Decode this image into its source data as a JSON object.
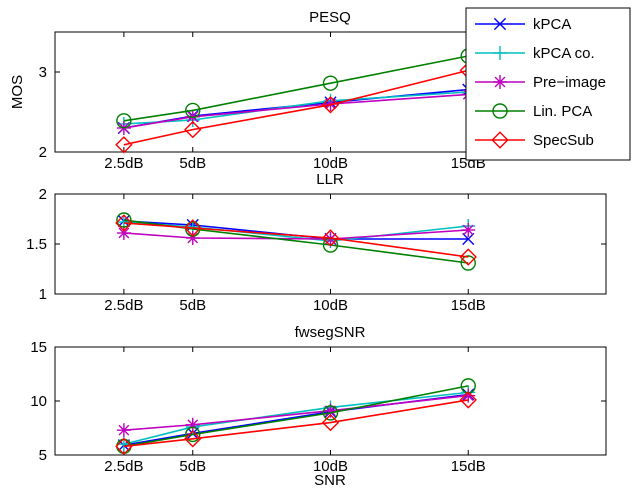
{
  "chart_data": [
    {
      "type": "line",
      "title": "PESQ",
      "xlabel": "",
      "ylabel": "MOS",
      "x": [
        2.5,
        5,
        10,
        15
      ],
      "xlim": [
        0,
        20
      ],
      "ylim": [
        2,
        3.5
      ],
      "xtick_labels": [
        "2.5dB",
        "5dB",
        "10dB",
        "15dB"
      ],
      "yticks": [
        2,
        3
      ],
      "ytick_labels": [
        "2",
        "3"
      ],
      "grid": false,
      "legend": "top-right",
      "series": [
        {
          "name": "kPCA",
          "color": "#0000ff",
          "marker": "x",
          "values": [
            2.3,
            2.45,
            2.62,
            2.78
          ]
        },
        {
          "name": "kPCA co.",
          "color": "#00bfbf",
          "marker": "plus",
          "values": [
            2.35,
            2.4,
            2.64,
            2.75
          ]
        },
        {
          "name": "Pre−image",
          "color": "#bf00bf",
          "marker": "asterisk",
          "values": [
            2.3,
            2.44,
            2.6,
            2.72
          ]
        },
        {
          "name": "Lin. PCA",
          "color": "#008000",
          "marker": "circle",
          "values": [
            2.39,
            2.52,
            2.86,
            3.2
          ]
        },
        {
          "name": "SpecSub",
          "color": "#ff0000",
          "marker": "diamond",
          "values": [
            2.09,
            2.28,
            2.59,
            3.02
          ]
        }
      ]
    },
    {
      "type": "line",
      "title": "LLR",
      "xlabel": "",
      "ylabel": "",
      "x": [
        2.5,
        5,
        10,
        15
      ],
      "xlim": [
        0,
        20
      ],
      "ylim": [
        1,
        2
      ],
      "xtick_labels": [
        "2.5dB",
        "5dB",
        "10dB",
        "15dB"
      ],
      "yticks": [
        1,
        1.5,
        2
      ],
      "ytick_labels": [
        "1",
        "1.5",
        "2"
      ],
      "grid": false,
      "series": [
        {
          "name": "kPCA",
          "color": "#0000ff",
          "marker": "x",
          "values": [
            1.73,
            1.69,
            1.55,
            1.55
          ]
        },
        {
          "name": "kPCA co.",
          "color": "#00bfbf",
          "marker": "plus",
          "values": [
            1.72,
            1.67,
            1.53,
            1.68
          ]
        },
        {
          "name": "Pre−image",
          "color": "#bf00bf",
          "marker": "asterisk",
          "values": [
            1.61,
            1.56,
            1.55,
            1.64
          ]
        },
        {
          "name": "Lin. PCA",
          "color": "#008000",
          "marker": "circle",
          "values": [
            1.74,
            1.65,
            1.49,
            1.31
          ]
        },
        {
          "name": "SpecSub",
          "color": "#ff0000",
          "marker": "diamond",
          "values": [
            1.71,
            1.66,
            1.56,
            1.37
          ]
        }
      ]
    },
    {
      "type": "line",
      "title": "fwsegSNR",
      "xlabel": "SNR",
      "ylabel": "",
      "x": [
        2.5,
        5,
        10,
        15
      ],
      "xlim": [
        0,
        20
      ],
      "ylim": [
        5,
        15
      ],
      "xtick_labels": [
        "2.5dB",
        "5dB",
        "10dB",
        "15dB"
      ],
      "yticks": [
        5,
        10,
        15
      ],
      "ytick_labels": [
        "5",
        "10",
        "15"
      ],
      "grid": false,
      "series": [
        {
          "name": "kPCA",
          "color": "#0000ff",
          "marker": "x",
          "values": [
            5.9,
            7.0,
            9.0,
            10.6
          ]
        },
        {
          "name": "kPCA co.",
          "color": "#00bfbf",
          "marker": "plus",
          "values": [
            6.0,
            7.6,
            9.4,
            10.8
          ]
        },
        {
          "name": "Pre−image",
          "color": "#bf00bf",
          "marker": "asterisk",
          "values": [
            7.3,
            7.8,
            9.1,
            10.5
          ]
        },
        {
          "name": "Lin. PCA",
          "color": "#008000",
          "marker": "circle",
          "values": [
            5.8,
            6.9,
            8.9,
            11.4
          ]
        },
        {
          "name": "SpecSub",
          "color": "#ff0000",
          "marker": "diamond",
          "values": [
            5.8,
            6.5,
            8.0,
            10.1
          ]
        }
      ]
    }
  ]
}
